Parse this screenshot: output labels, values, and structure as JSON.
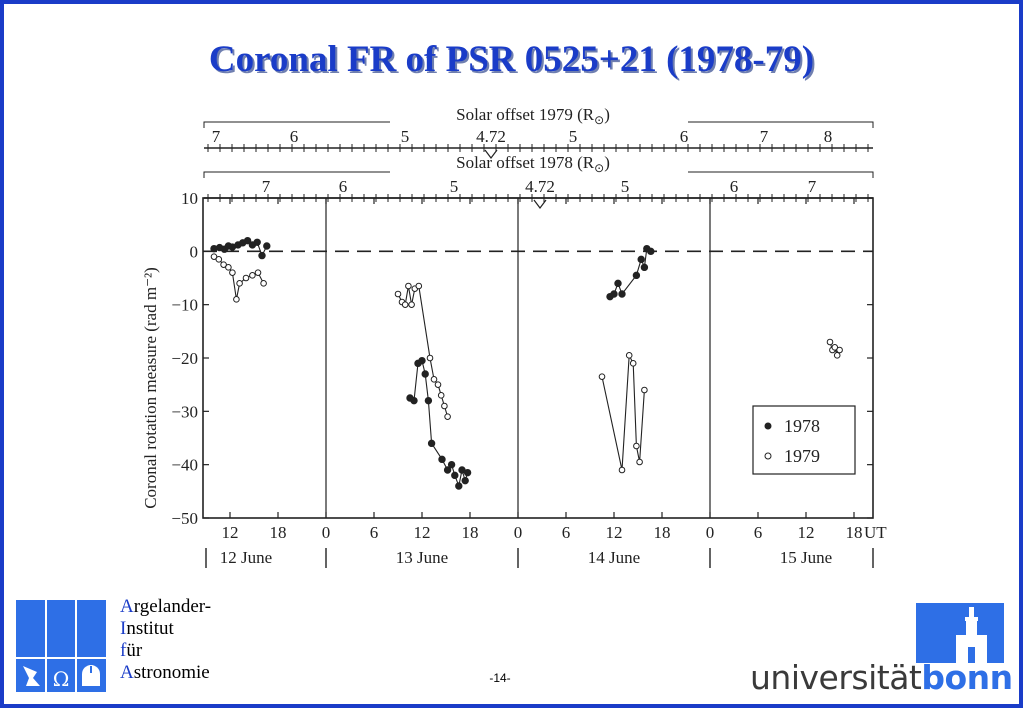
{
  "slide": {
    "title": "Coronal FR of PSR 0525+21 (1978-79)",
    "page_number": "-14-"
  },
  "institute": {
    "lines": [
      {
        "initial": "A",
        "rest": "rgelander-"
      },
      {
        "initial": "I",
        "rest": "nstitut"
      },
      {
        "initial": "f",
        "rest": "ür"
      },
      {
        "initial": "A",
        "rest": "stronomie"
      }
    ],
    "logo_glyph": "Ω",
    "icons": [
      "telescope-icon",
      "omega-icon",
      "observatory-icon"
    ]
  },
  "university": {
    "word_plain": "universität",
    "word_bold": "bonn",
    "mark_icon": "university-building-icon"
  },
  "colors": {
    "accent": "#1a3cc8",
    "logo_blue": "#2e6fe6",
    "ink": "#222222"
  },
  "chart_data": {
    "type": "scatter",
    "ylabel": "Coronal rotation measure (rad m⁻²)",
    "ylim": [
      -50,
      10
    ],
    "y_ticks": [
      "10",
      "0",
      "−10",
      "−20",
      "−30",
      "−40",
      "−50"
    ],
    "x_unit": "UT",
    "x_ticks": [
      "12",
      "18",
      "0",
      "6",
      "12",
      "18",
      "0",
      "6",
      "12",
      "18",
      "0",
      "6",
      "12",
      "18"
    ],
    "day_labels": [
      "12 June",
      "13 June",
      "14 June",
      "15 June"
    ],
    "top_axis_1979": {
      "label": "Solar offset 1979 (R",
      "sym": "⊙",
      "close": ")",
      "ticks": [
        "7",
        "6",
        "5",
        "4.72",
        "5",
        "6",
        "7",
        "8"
      ]
    },
    "bottom_axis_1978": {
      "label": "Solar offset 1978 (R",
      "sym": "⊙",
      "close": ")",
      "ticks": [
        "7",
        "6",
        "5",
        "4.72",
        "5",
        "6",
        "7"
      ]
    },
    "legend": [
      "1978",
      "1979"
    ],
    "series": [
      {
        "name": "1978",
        "marker": "filled",
        "segments": [
          [
            [
              10.0,
              0.5
            ],
            [
              10.7,
              0.7
            ],
            [
              11.3,
              0.4
            ],
            [
              11.8,
              1.0
            ],
            [
              12.3,
              0.8
            ],
            [
              13.0,
              1.2
            ],
            [
              13.6,
              1.6
            ],
            [
              14.2,
              2.0
            ],
            [
              14.8,
              1.2
            ],
            [
              15.4,
              1.7
            ],
            [
              16.0,
              -0.8
            ],
            [
              16.6,
              1.0
            ]
          ],
          [
            [
              34.5,
              -27.5
            ],
            [
              35.0,
              -28
            ],
            [
              35.5,
              -21
            ],
            [
              36.0,
              -20.5
            ],
            [
              36.4,
              -23
            ],
            [
              36.8,
              -28
            ],
            [
              37.2,
              -36
            ],
            [
              38.5,
              -39
            ],
            [
              39.2,
              -41
            ],
            [
              39.7,
              -40
            ],
            [
              40.1,
              -42
            ],
            [
              40.6,
              -44
            ],
            [
              41.0,
              -41
            ],
            [
              41.4,
              -43
            ],
            [
              41.7,
              -41.5
            ]
          ],
          [
            [
              59.5,
              -8.5
            ],
            [
              60.0,
              -8
            ],
            [
              60.5,
              -6
            ],
            [
              61.0,
              -8
            ],
            [
              62.8,
              -4.5
            ],
            [
              63.4,
              -1.5
            ],
            [
              63.8,
              -3
            ],
            [
              64.1,
              0.5
            ],
            [
              64.6,
              0
            ]
          ]
        ]
      },
      {
        "name": "1979",
        "marker": "open",
        "segments": [
          [
            [
              10.0,
              -1
            ],
            [
              10.6,
              -1.5
            ],
            [
              11.2,
              -2.5
            ],
            [
              11.8,
              -3
            ],
            [
              12.3,
              -4
            ],
            [
              12.8,
              -9
            ],
            [
              13.2,
              -6
            ],
            [
              14.0,
              -5
            ],
            [
              14.8,
              -4.5
            ],
            [
              15.5,
              -4
            ],
            [
              16.2,
              -6
            ]
          ],
          [
            [
              33.0,
              -8
            ],
            [
              33.5,
              -9.5
            ],
            [
              33.9,
              -10
            ],
            [
              34.3,
              -6.5
            ],
            [
              34.7,
              -10
            ],
            [
              35.1,
              -7
            ],
            [
              35.6,
              -6.5
            ],
            [
              37.0,
              -20
            ],
            [
              37.5,
              -24
            ],
            [
              38.0,
              -25
            ],
            [
              38.4,
              -27
            ],
            [
              38.8,
              -29
            ],
            [
              39.2,
              -31
            ]
          ],
          [
            [
              58.5,
              -23.5
            ],
            [
              61.0,
              -41
            ],
            [
              61.9,
              -19.5
            ],
            [
              62.4,
              -21
            ],
            [
              62.8,
              -36.5
            ],
            [
              63.2,
              -39.5
            ],
            [
              63.8,
              -26
            ]
          ],
          [
            [
              87.0,
              -17
            ],
            [
              87.3,
              -18.5
            ],
            [
              87.6,
              -18
            ],
            [
              87.9,
              -19.5
            ],
            [
              88.2,
              -18.5
            ]
          ]
        ]
      }
    ]
  }
}
